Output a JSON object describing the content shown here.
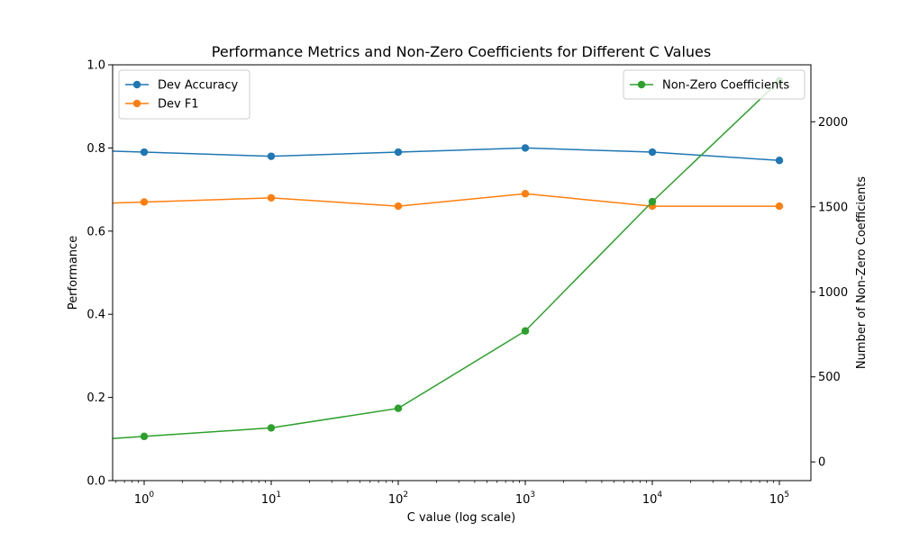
{
  "chart_data": {
    "type": "line",
    "title": "Performance Metrics and Non-Zero Coefficients for Different C Values",
    "xlabel": "C value (log scale)",
    "ylabel": "Performance",
    "y2label": "Number of Non-Zero Coefficients",
    "x_scale": "log",
    "x": [
      1,
      10,
      100,
      1000,
      10000,
      100000
    ],
    "x_ticks": [
      {
        "base": "10",
        "exp": "0",
        "value": 1
      },
      {
        "base": "10",
        "exp": "1",
        "value": 10
      },
      {
        "base": "10",
        "exp": "2",
        "value": 100
      },
      {
        "base": "10",
        "exp": "3",
        "value": 1000
      },
      {
        "base": "10",
        "exp": "4",
        "value": 10000
      },
      {
        "base": "10",
        "exp": "5",
        "value": 100000
      }
    ],
    "ylim": [
      0,
      1.0
    ],
    "y_ticks": [
      "0.0",
      "0.2",
      "0.4",
      "0.6",
      "0.8",
      "1.0"
    ],
    "y2lim": [
      -110,
      2335
    ],
    "y2_ticks": [
      "0",
      "500",
      "1000",
      "1500",
      "2000"
    ],
    "grid": false,
    "legend_left": "upper-left",
    "legend_right": "upper-right",
    "series": [
      {
        "name": "Dev Accuracy",
        "axis": "left",
        "color": "#1f77b4",
        "values": [
          0.79,
          0.78,
          0.79,
          0.8,
          0.79,
          0.77
        ]
      },
      {
        "name": "Dev F1",
        "axis": "left",
        "color": "#ff7f0e",
        "values": [
          0.67,
          0.68,
          0.66,
          0.69,
          0.66,
          0.66
        ]
      },
      {
        "name": "Non-Zero Coefficients",
        "axis": "right",
        "color": "#2ca02c",
        "values": [
          150,
          200,
          315,
          770,
          1530,
          2240
        ]
      }
    ]
  }
}
